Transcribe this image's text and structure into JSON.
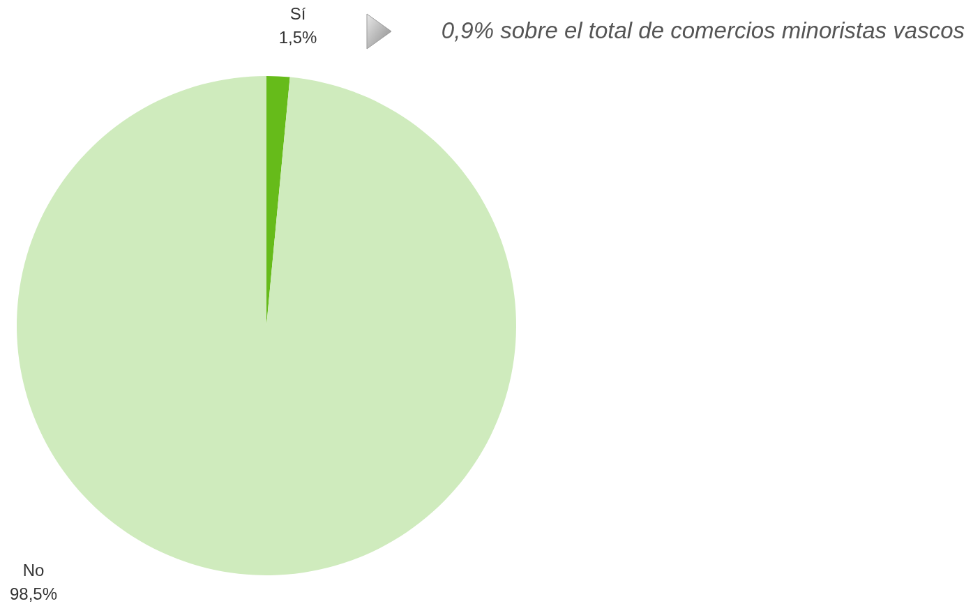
{
  "chart_data": {
    "type": "pie",
    "categories": [
      "Sí",
      "No"
    ],
    "values": [
      1.5,
      98.5
    ],
    "colors": [
      "#66bb1a",
      "#cfebbd"
    ],
    "value_labels": [
      "1,5%",
      "98,5%"
    ],
    "annotations": [
      "0,9% sobre el total de comercios minoristas vascos"
    ]
  }
}
